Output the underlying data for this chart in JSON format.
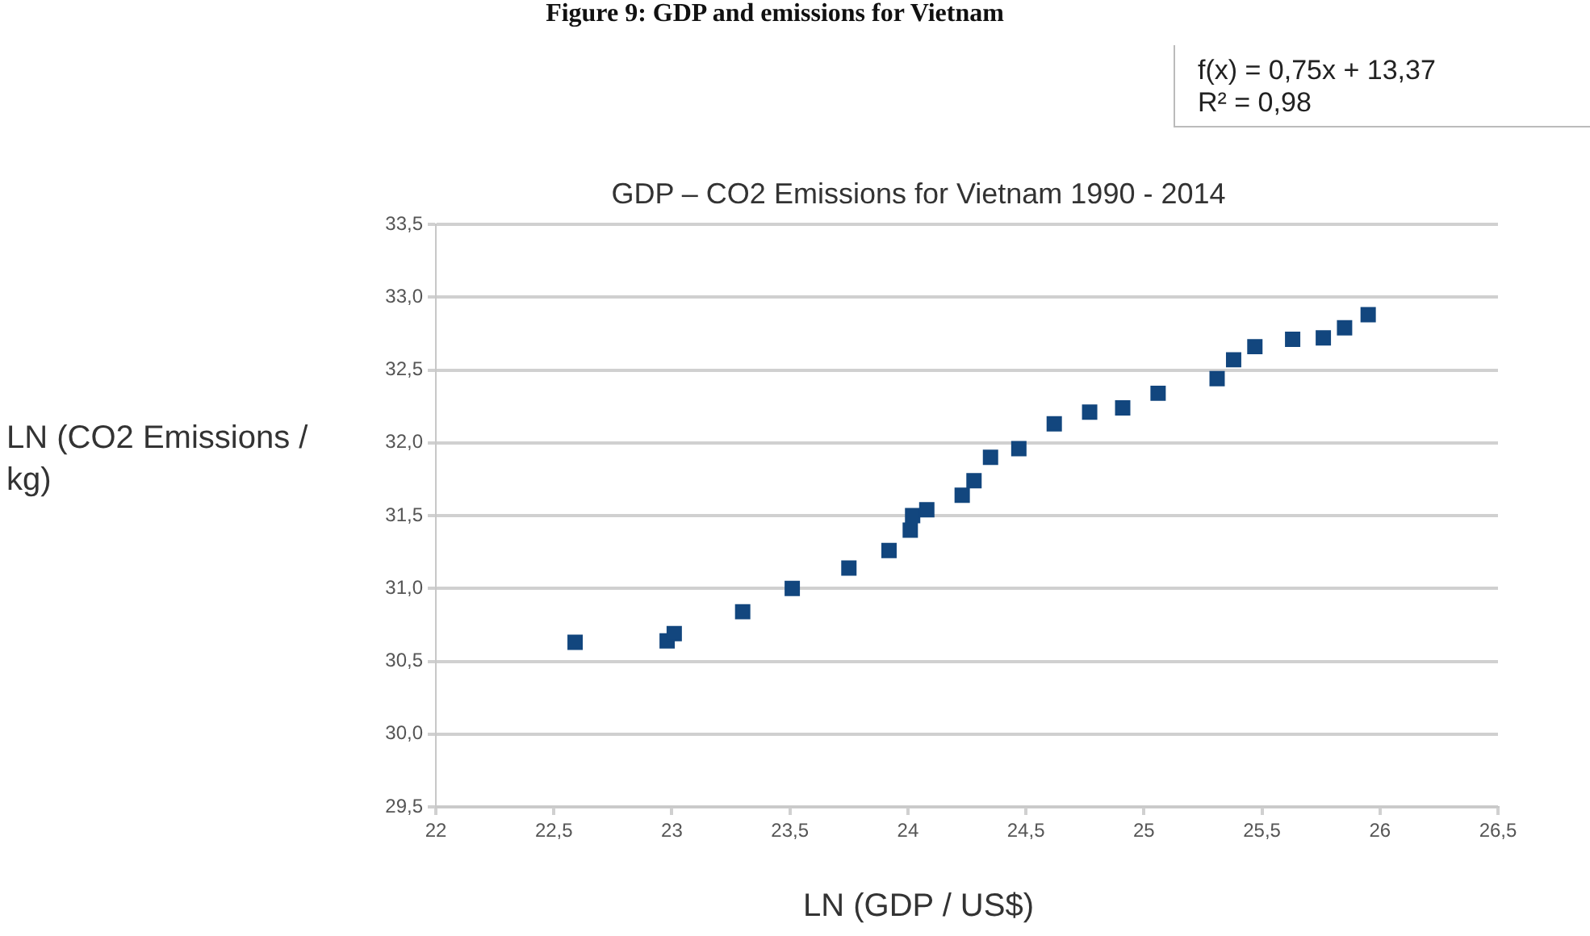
{
  "chart_data": {
    "type": "scatter",
    "title": "GDP – CO2 Emissions for Vietnam 1990 - 2014",
    "xlabel": "LN (GDP / US$)",
    "ylabel": "LN (CO2 Emissions / kg)",
    "annotations": [
      "Figure 9: GDP and emissions for Vietnam",
      "f(x) = 0,75x + 13,37",
      "R² = 0,98"
    ],
    "series": [
      {
        "color": "#12467e",
        "x": [
          22.59,
          22.98,
          23.01,
          23.3,
          23.51,
          23.75,
          23.92,
          24.01,
          24.02,
          24.08,
          24.23,
          24.28,
          24.35,
          24.47,
          24.62,
          24.77,
          24.91,
          25.06,
          25.31,
          25.38,
          25.47,
          25.63,
          25.76,
          25.85,
          25.95
        ],
        "values": [
          30.63,
          30.64,
          30.69,
          30.84,
          31.0,
          31.14,
          31.26,
          31.4,
          31.5,
          31.54,
          31.64,
          31.74,
          31.9,
          31.96,
          32.13,
          32.21,
          32.24,
          32.34,
          32.44,
          32.57,
          32.66,
          32.71,
          32.72,
          32.79,
          32.88
        ]
      }
    ],
    "xlim": [
      22,
      26.5
    ],
    "xticks": [
      22,
      {
        "value": 22.5,
        "label": "22,5"
      },
      23,
      {
        "value": 23.5,
        "label": "23,5"
      },
      24,
      {
        "value": 24.5,
        "label": "24,5"
      },
      25,
      {
        "value": 25.5,
        "label": "25,5"
      },
      26,
      {
        "value": 26.5,
        "label": "26,5"
      }
    ],
    "ylim": [
      29.5,
      33.5
    ],
    "yticks": [
      {
        "value": 29.5,
        "label": "29,5"
      },
      {
        "value": 30,
        "label": "30,0"
      },
      {
        "value": 30.5,
        "label": "30,5"
      },
      {
        "value": 31,
        "label": "31,0"
      },
      {
        "value": 31.5,
        "label": "31,5"
      },
      {
        "value": 32,
        "label": "32,0"
      },
      {
        "value": 32.5,
        "label": "32,5"
      },
      {
        "value": 33,
        "label": "33,0"
      },
      {
        "value": 33.5,
        "label": "33,5"
      }
    ],
    "grid": "y",
    "legend": false,
    "marker": "square"
  }
}
